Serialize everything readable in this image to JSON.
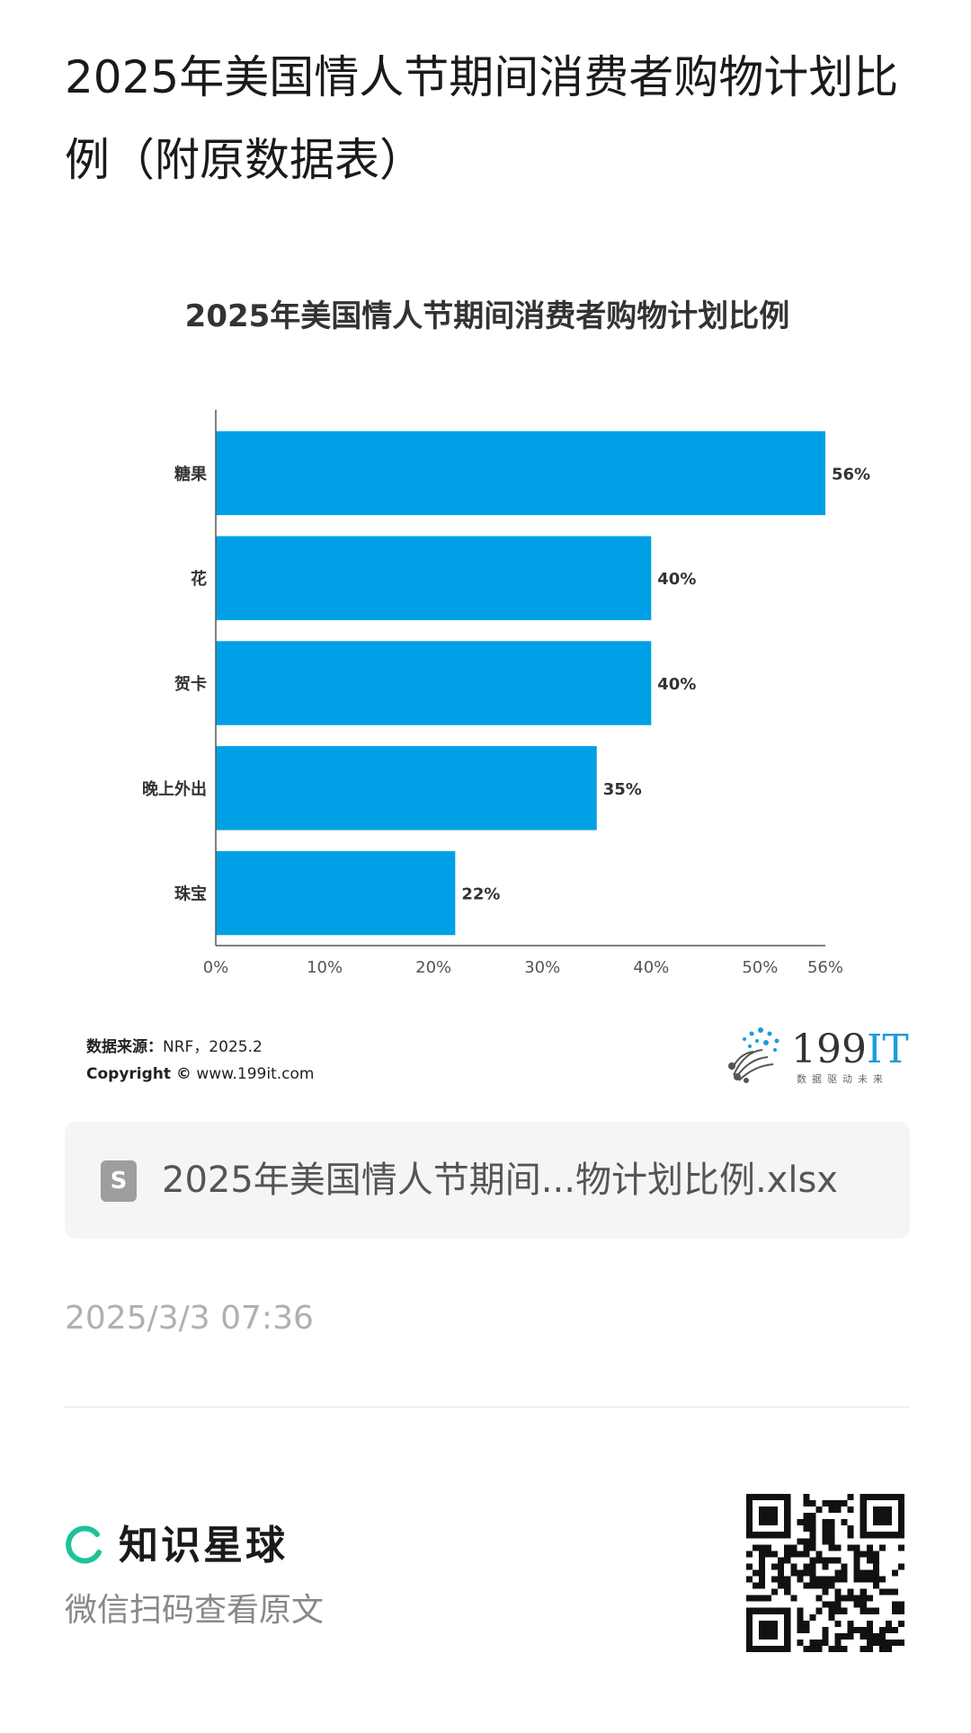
{
  "page": {
    "title": "2025年美国情人节期间消费者购物计划比例（附原数据表）"
  },
  "chart_data": {
    "type": "bar",
    "orientation": "horizontal",
    "title": "2025年美国情人节期间消费者购物计划比例",
    "categories": [
      "糖果",
      "花",
      "贺卡",
      "晚上外出",
      "珠宝"
    ],
    "values": [
      56,
      40,
      40,
      35,
      22
    ],
    "value_labels": [
      "56%",
      "40%",
      "40%",
      "35%",
      "22%"
    ],
    "x_ticks": [
      0,
      10,
      20,
      30,
      40,
      50,
      56
    ],
    "x_tick_labels": [
      "0%",
      "10%",
      "20%",
      "30%",
      "40%",
      "50%",
      "56%"
    ],
    "xlim": [
      0,
      56
    ],
    "grid": false,
    "bar_color": "#00a0e6"
  },
  "source": {
    "label": "数据来源：",
    "value": "NRF，2025.2",
    "copyright_label": "Copyright ©",
    "copyright_value": "www.199it.com"
  },
  "brand": {
    "name_num": "199",
    "name_it": "IT",
    "tagline": "数据驱动未来",
    "accent_color": "#1f9bd7"
  },
  "file": {
    "icon": "spreadsheet-icon",
    "icon_letter": "S",
    "name": "2025年美国情人节期间...物计划比例.xlsx"
  },
  "timestamp": "2025/3/3 07:36",
  "footer": {
    "planet_name": "知识星球",
    "planet_color": "#1ec29a",
    "scan_hint": "微信扫码查看原文"
  }
}
